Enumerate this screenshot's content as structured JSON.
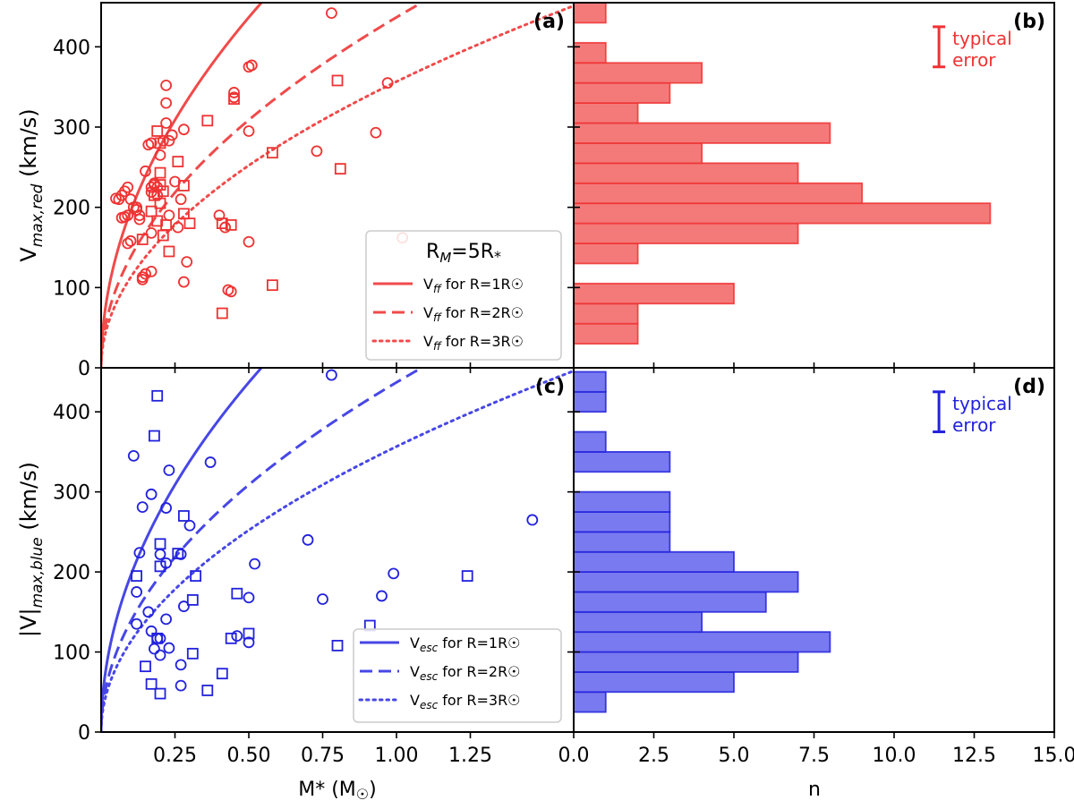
{
  "colors": {
    "red": "#ee3333",
    "red_line": "#f04a4a",
    "red_fill": "#f47a7a",
    "blue": "#2222dd",
    "blue_line": "#4747e6",
    "blue_fill": "#7a7af0",
    "frame": "#000000"
  },
  "chart_data": [
    {
      "id": "a",
      "type": "scatter",
      "label": "(a)",
      "ylabel": "V_max,red (km/s)",
      "xlabel": "",
      "xlim": [
        0,
        1.6
      ],
      "ylim": [
        0,
        455
      ],
      "yticks": [
        0,
        100,
        200,
        300,
        400
      ],
      "ytick_labels": [
        "0",
        "100",
        "200",
        "300",
        "400"
      ],
      "legend_title": "RM=5R*",
      "legend": [
        "Vff for R=1R☉",
        "Vff for R=2R☉",
        "Vff for R=3R☉"
      ],
      "curves": [
        {
          "name": "R=1",
          "style": "solid",
          "k": 617.7,
          "r": 1
        },
        {
          "name": "R=2",
          "style": "dashed",
          "k": 617.7,
          "r": 2
        },
        {
          "name": "R=3",
          "style": "dotted",
          "k": 617.7,
          "r": 3
        }
      ],
      "circles": [
        [
          0.05,
          211
        ],
        [
          0.06,
          210
        ],
        [
          0.07,
          215
        ],
        [
          0.08,
          220
        ],
        [
          0.09,
          225
        ],
        [
          0.07,
          187
        ],
        [
          0.08,
          188
        ],
        [
          0.09,
          155
        ],
        [
          0.1,
          158
        ],
        [
          0.1,
          210
        ],
        [
          0.11,
          200
        ],
        [
          0.12,
          197
        ],
        [
          0.13,
          190
        ],
        [
          0.13,
          185
        ],
        [
          0.14,
          113
        ],
        [
          0.14,
          110
        ],
        [
          0.15,
          245
        ],
        [
          0.16,
          278
        ],
        [
          0.17,
          280
        ],
        [
          0.17,
          225
        ],
        [
          0.18,
          228
        ],
        [
          0.18,
          230
        ],
        [
          0.19,
          225
        ],
        [
          0.2,
          265
        ],
        [
          0.21,
          283
        ],
        [
          0.22,
          305
        ],
        [
          0.22,
          330
        ],
        [
          0.22,
          352
        ],
        [
          0.23,
          283
        ],
        [
          0.24,
          290
        ],
        [
          0.25,
          232
        ],
        [
          0.26,
          175
        ],
        [
          0.27,
          210
        ],
        [
          0.28,
          297
        ],
        [
          0.28,
          107
        ],
        [
          0.29,
          132
        ],
        [
          0.17,
          120
        ],
        [
          0.15,
          117
        ],
        [
          0.4,
          190
        ],
        [
          0.42,
          175
        ],
        [
          0.43,
          97
        ],
        [
          0.44,
          95
        ],
        [
          0.45,
          343
        ],
        [
          0.45,
          337
        ],
        [
          0.5,
          375
        ],
        [
          0.51,
          377
        ],
        [
          0.5,
          295
        ],
        [
          0.5,
          157
        ],
        [
          0.73,
          270
        ],
        [
          0.78,
          442
        ],
        [
          0.93,
          293
        ],
        [
          0.97,
          355
        ],
        [
          1.02,
          162
        ],
        [
          0.09,
          190
        ],
        [
          0.12,
          200
        ],
        [
          0.17,
          168
        ],
        [
          0.19,
          215
        ],
        [
          0.23,
          190
        ],
        [
          0.17,
          219
        ]
      ],
      "squares": [
        [
          0.18,
          215
        ],
        [
          0.19,
          183
        ],
        [
          0.19,
          295
        ],
        [
          0.2,
          243
        ],
        [
          0.2,
          280
        ],
        [
          0.2,
          228
        ],
        [
          0.21,
          165
        ],
        [
          0.21,
          220
        ],
        [
          0.22,
          178
        ],
        [
          0.23,
          145
        ],
        [
          0.26,
          257
        ],
        [
          0.28,
          227
        ],
        [
          0.28,
          192
        ],
        [
          0.3,
          180
        ],
        [
          0.36,
          308
        ],
        [
          0.41,
          180
        ],
        [
          0.41,
          68
        ],
        [
          0.44,
          178
        ],
        [
          0.45,
          335
        ],
        [
          0.58,
          268
        ],
        [
          0.58,
          103
        ],
        [
          0.8,
          358
        ],
        [
          0.81,
          248
        ],
        [
          0.2,
          205
        ],
        [
          0.17,
          195
        ],
        [
          0.14,
          160
        ]
      ]
    },
    {
      "id": "b",
      "type": "bar",
      "orientation": "horizontal",
      "label": "(b)",
      "annotation": [
        "typical",
        "error"
      ],
      "xlim": [
        0,
        15
      ],
      "ylim": [
        0,
        455
      ],
      "bin_edges": [
        30,
        55,
        80,
        105,
        130,
        155,
        180,
        205,
        230,
        255,
        280,
        305,
        330,
        355,
        380,
        405,
        430,
        455
      ],
      "counts": [
        2,
        2,
        5,
        0,
        2,
        7,
        13,
        9,
        7,
        4,
        8,
        2,
        3,
        4,
        1,
        0,
        1
      ],
      "error_range": [
        375,
        425
      ]
    },
    {
      "id": "c",
      "type": "scatter",
      "label": "(c)",
      "ylabel": "|V|max,blue (km/s)",
      "xlabel": "M* (M☉)",
      "xlim": [
        0,
        1.6
      ],
      "ylim": [
        0,
        455
      ],
      "xticks": [
        0.25,
        0.5,
        0.75,
        1.0,
        1.25
      ],
      "xtick_labels": [
        "0.25",
        "0.50",
        "0.75",
        "1.00",
        "1.25"
      ],
      "yticks": [
        0,
        100,
        200,
        300,
        400
      ],
      "ytick_labels": [
        "0",
        "100",
        "200",
        "300",
        "400"
      ],
      "legend": [
        "Vesc for R=1R☉",
        "Vesc for R=2R☉",
        "Vesc for R=3R☉"
      ],
      "curves": [
        {
          "name": "R=1",
          "style": "solid",
          "k": 617.7,
          "r": 1
        },
        {
          "name": "R=2",
          "style": "dashed",
          "k": 617.7,
          "r": 2
        },
        {
          "name": "R=3",
          "style": "dotted",
          "k": 617.7,
          "r": 3
        }
      ],
      "circles": [
        [
          0.11,
          345
        ],
        [
          0.14,
          281
        ],
        [
          0.17,
          297
        ],
        [
          0.23,
          327
        ],
        [
          0.13,
          224
        ],
        [
          0.16,
          150
        ],
        [
          0.17,
          126
        ],
        [
          0.12,
          135
        ],
        [
          0.18,
          104
        ],
        [
          0.19,
          117
        ],
        [
          0.2,
          117
        ],
        [
          0.2,
          96
        ],
        [
          0.2,
          222
        ],
        [
          0.22,
          141
        ],
        [
          0.23,
          105
        ],
        [
          0.22,
          211
        ],
        [
          0.27,
          222
        ],
        [
          0.28,
          157
        ],
        [
          0.27,
          84
        ],
        [
          0.27,
          58
        ],
        [
          0.3,
          258
        ],
        [
          0.37,
          337
        ],
        [
          0.46,
          120
        ],
        [
          0.5,
          168
        ],
        [
          0.52,
          210
        ],
        [
          0.5,
          112
        ],
        [
          0.7,
          240
        ],
        [
          0.75,
          166
        ],
        [
          0.78,
          446
        ],
        [
          0.95,
          170
        ],
        [
          0.99,
          198
        ],
        [
          1.46,
          265
        ],
        [
          0.22,
          280
        ],
        [
          0.12,
          175
        ]
      ],
      "squares": [
        [
          0.12,
          195
        ],
        [
          0.15,
          82
        ],
        [
          0.17,
          60
        ],
        [
          0.18,
          370
        ],
        [
          0.19,
          420
        ],
        [
          0.2,
          235
        ],
        [
          0.2,
          207
        ],
        [
          0.2,
          48
        ],
        [
          0.26,
          223
        ],
        [
          0.28,
          270
        ],
        [
          0.31,
          165
        ],
        [
          0.31,
          98
        ],
        [
          0.32,
          195
        ],
        [
          0.36,
          52
        ],
        [
          0.41,
          73
        ],
        [
          0.44,
          117
        ],
        [
          0.46,
          173
        ],
        [
          0.5,
          123
        ],
        [
          0.8,
          108
        ],
        [
          0.91,
          133
        ],
        [
          1.24,
          195
        ],
        [
          0.19,
          117
        ]
      ]
    },
    {
      "id": "d",
      "type": "bar",
      "orientation": "horizontal",
      "label": "(d)",
      "annotation": [
        "typical",
        "error"
      ],
      "xlabel": "n",
      "xlim": [
        0,
        15
      ],
      "ylim": [
        0,
        455
      ],
      "xticks": [
        0,
        2.5,
        5,
        7.5,
        10,
        12.5,
        15
      ],
      "xtick_labels": [
        "0.0",
        "2.5",
        "5.0",
        "7.5",
        "10.0",
        "12.5",
        "15.0"
      ],
      "bin_edges": [
        25,
        50,
        75,
        100,
        125,
        150,
        175,
        200,
        225,
        250,
        275,
        300,
        325,
        350,
        375,
        400,
        425,
        450
      ],
      "counts": [
        1,
        5,
        7,
        8,
        4,
        6,
        7,
        5,
        3,
        3,
        3,
        0,
        3,
        1,
        0,
        1,
        1
      ],
      "error_range": [
        375,
        425
      ]
    }
  ]
}
